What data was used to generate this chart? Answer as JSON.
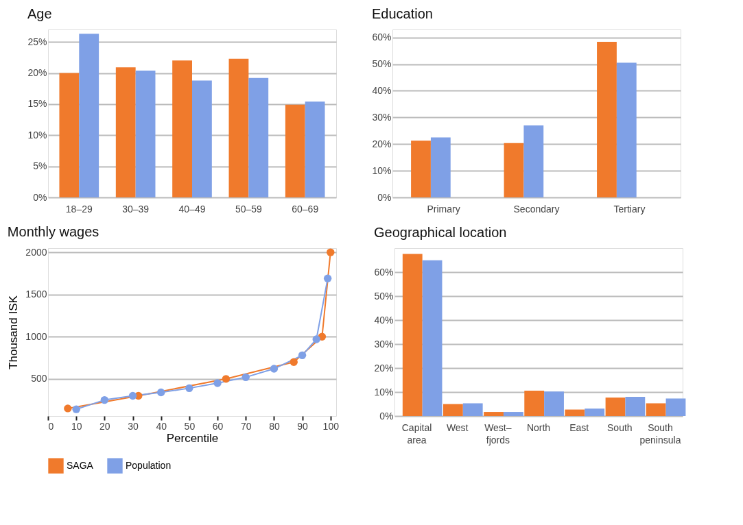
{
  "chart_data": [
    {
      "type": "bar",
      "title": "Age",
      "categories": [
        "18–29",
        "30–39",
        "40–49",
        "50–59",
        "60–69"
      ],
      "ylim": [
        0,
        27
      ],
      "yticks": [
        {
          "value": 0,
          "label": "0%"
        },
        {
          "value": 5,
          "label": "5%"
        },
        {
          "value": 10,
          "label": "10%"
        },
        {
          "value": 15,
          "label": "15%"
        },
        {
          "value": 20,
          "label": "20%"
        },
        {
          "value": 25,
          "label": "25%"
        }
      ],
      "grid": "y",
      "legend": "bottom",
      "series": [
        {
          "name": "SAGA",
          "color": "#f07a2c",
          "values": [
            20.0,
            20.9,
            22.0,
            22.3,
            14.9
          ]
        },
        {
          "name": "Population",
          "color": "#7fa0e6",
          "values": [
            26.3,
            20.4,
            18.8,
            19.2,
            15.4
          ]
        }
      ]
    },
    {
      "type": "bar",
      "title": "Education",
      "categories": [
        "Primary",
        "Secondary",
        "Tertiary"
      ],
      "ylim": [
        0,
        63
      ],
      "yticks": [
        {
          "value": 0,
          "label": "0%"
        },
        {
          "value": 10,
          "label": "10%"
        },
        {
          "value": 20,
          "label": "20%"
        },
        {
          "value": 30,
          "label": "30%"
        },
        {
          "value": 40,
          "label": "40%"
        },
        {
          "value": 50,
          "label": "50%"
        },
        {
          "value": 60,
          "label": "60%"
        }
      ],
      "grid": "y",
      "legend": "bottom",
      "series": [
        {
          "name": "SAGA",
          "color": "#f07a2c",
          "values": [
            21.3,
            20.4,
            58.4
          ]
        },
        {
          "name": "Population",
          "color": "#7fa0e6",
          "values": [
            22.5,
            27.0,
            50.5
          ]
        }
      ]
    },
    {
      "type": "line",
      "title": "Monthly wages",
      "xlabel": "Percentile",
      "ylabel": "Thousand ISK",
      "xlim": [
        0,
        102
      ],
      "xticks": [
        0,
        10,
        20,
        30,
        40,
        50,
        60,
        70,
        80,
        90,
        100
      ],
      "ylim": [
        60,
        2050
      ],
      "yticks": [
        500,
        1000,
        1500,
        2000
      ],
      "grid": "y",
      "legend": "bottom",
      "marker": "circle",
      "line_style": "solid",
      "series": [
        {
          "name": "SAGA",
          "color": "#f07a2c",
          "x": [
            7,
            32,
            63,
            87,
            97,
            100
          ],
          "values": [
            150,
            300,
            500,
            700,
            1000,
            2000
          ]
        },
        {
          "name": "Population",
          "color": "#7fa0e6",
          "x": [
            10,
            20,
            30,
            40,
            50,
            60,
            70,
            80,
            90,
            95,
            99
          ],
          "values": [
            140,
            250,
            300,
            340,
            390,
            450,
            520,
            620,
            780,
            970,
            1690
          ]
        }
      ]
    },
    {
      "type": "bar",
      "title": "Geographical location",
      "categories": [
        "Capital area",
        "West",
        "West–fjords",
        "North",
        "East",
        "South",
        "South peninsula"
      ],
      "ylim": [
        0,
        70
      ],
      "yticks": [
        {
          "value": 0,
          "label": "0%"
        },
        {
          "value": 10,
          "label": "10%"
        },
        {
          "value": 20,
          "label": "20%"
        },
        {
          "value": 30,
          "label": "30%"
        },
        {
          "value": 40,
          "label": "40%"
        },
        {
          "value": 50,
          "label": "50%"
        },
        {
          "value": 60,
          "label": "60%"
        }
      ],
      "grid": "y",
      "legend": "bottom",
      "series": [
        {
          "name": "SAGA",
          "color": "#f07a2c",
          "values": [
            67.6,
            5.0,
            1.7,
            10.6,
            2.7,
            7.7,
            5.3
          ]
        },
        {
          "name": "Population",
          "color": "#7fa0e6",
          "values": [
            64.9,
            5.3,
            1.7,
            10.2,
            3.1,
            8.0,
            7.3
          ]
        }
      ]
    }
  ]
}
